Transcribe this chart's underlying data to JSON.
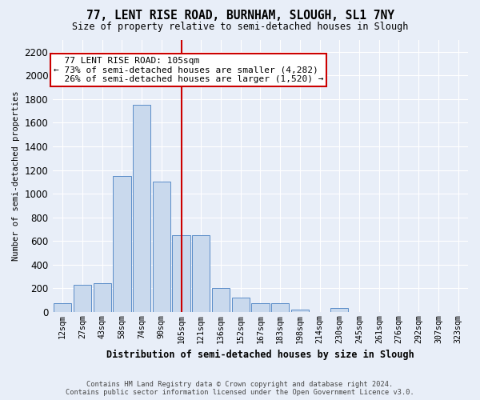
{
  "title": "77, LENT RISE ROAD, BURNHAM, SLOUGH, SL1 7NY",
  "subtitle": "Size of property relative to semi-detached houses in Slough",
  "xlabel": "Distribution of semi-detached houses by size in Slough",
  "ylabel": "Number of semi-detached properties",
  "categories": [
    "12sqm",
    "27sqm",
    "43sqm",
    "58sqm",
    "74sqm",
    "90sqm",
    "105sqm",
    "121sqm",
    "136sqm",
    "152sqm",
    "167sqm",
    "183sqm",
    "198sqm",
    "214sqm",
    "230sqm",
    "245sqm",
    "261sqm",
    "276sqm",
    "292sqm",
    "307sqm",
    "323sqm"
  ],
  "values": [
    75,
    230,
    240,
    1150,
    1750,
    1100,
    650,
    650,
    200,
    120,
    75,
    70,
    20,
    0,
    30,
    0,
    0,
    0,
    0,
    0,
    0
  ],
  "property_index": 6,
  "property_label": "77 LENT RISE ROAD: 105sqm",
  "smaller_pct": "73%",
  "smaller_count": "4,282",
  "larger_pct": "26%",
  "larger_count": "1,520",
  "bar_color": "#c9d9ed",
  "bar_edge_color": "#5b8dc8",
  "property_line_color": "#cc0000",
  "annotation_box_color": "#cc0000",
  "bg_color": "#e8eef8",
  "plot_bg_color": "#e8eef8",
  "grid_color": "#ffffff",
  "ylim": [
    0,
    2300
  ],
  "yticks": [
    0,
    200,
    400,
    600,
    800,
    1000,
    1200,
    1400,
    1600,
    1800,
    2000,
    2200
  ],
  "footer_line1": "Contains HM Land Registry data © Crown copyright and database right 2024.",
  "footer_line2": "Contains public sector information licensed under the Open Government Licence v3.0."
}
